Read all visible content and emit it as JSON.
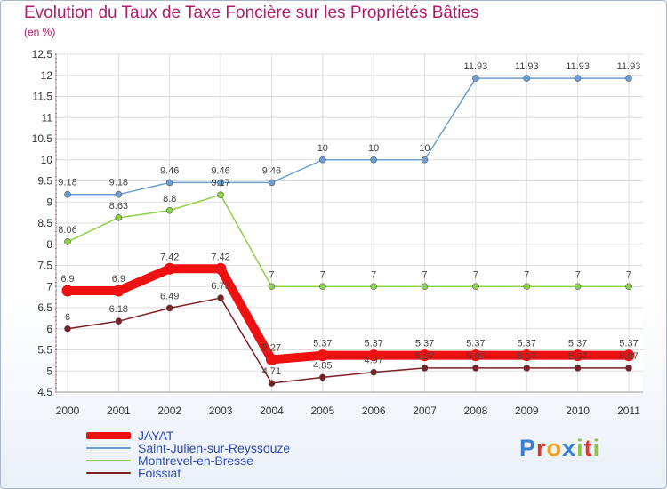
{
  "chart_data": {
    "type": "line",
    "title": "Evolution du Taux de Taxe Foncière sur les Propriétés Bâties",
    "ylabel": "(en %)",
    "xlabel": "",
    "ylim": [
      4.5,
      12.5
    ],
    "yticks": [
      "4.5",
      "5",
      "5.5",
      "6",
      "6.5",
      "7",
      "7.5",
      "8",
      "8.5",
      "9",
      "9.5",
      "10",
      "10.5",
      "11",
      "11.5",
      "12",
      "12.5"
    ],
    "categories": [
      "2000",
      "2001",
      "2002",
      "2003",
      "2004",
      "2005",
      "2006",
      "2007",
      "2008",
      "2009",
      "2010",
      "2011"
    ],
    "series": [
      {
        "name": "Saint-Julien-sur-Reyssouze",
        "color": "#6b9ed3",
        "values": [
          9.18,
          9.18,
          9.46,
          9.46,
          9.46,
          10,
          10,
          10,
          11.93,
          11.93,
          11.93,
          11.93
        ],
        "labels": [
          "9.18",
          "9.18",
          "9.46",
          "9.46",
          "9.46",
          "10",
          "10",
          "10",
          "11.93",
          "11.93",
          "11.93",
          "11.93"
        ]
      },
      {
        "name": "Montrevel-en-Bresse",
        "color": "#8ed146",
        "values": [
          8.06,
          8.63,
          8.8,
          9.17,
          7,
          7,
          7,
          7,
          7,
          7,
          7,
          7
        ],
        "labels": [
          "8.06",
          "8.63",
          "8.8",
          "9.17",
          "7",
          "7",
          "7",
          "7",
          "7",
          "7",
          "7",
          "7"
        ]
      },
      {
        "name": "Foissiat",
        "color": "#7a1f24",
        "values": [
          6,
          6.18,
          6.49,
          6.73,
          4.71,
          4.85,
          4.97,
          5.07,
          5.07,
          5.07,
          5.07,
          5.07
        ],
        "labels": [
          "6",
          "6.18",
          "6.49",
          "6.73",
          "4.71",
          "4.85",
          "4.97",
          "5.07",
          "5.07",
          "5.07",
          "5.07",
          "5.07"
        ]
      },
      {
        "name": "JAYAT",
        "color": "#ee1111",
        "values": [
          6.9,
          6.9,
          7.42,
          7.42,
          5.27,
          5.37,
          5.37,
          5.37,
          5.37,
          5.37,
          5.37,
          5.37
        ],
        "labels": [
          "6.9",
          "6.9",
          "7.42",
          "7.42",
          "5.27",
          "5.37",
          "5.37",
          "5.37",
          "5.37",
          "5.37",
          "5.37",
          "5.37"
        ]
      }
    ],
    "legend": [
      "JAYAT",
      "Saint-Julien-sur-Reyssouze",
      "Montrevel-en-Bresse",
      "Foissiat"
    ]
  },
  "logo": {
    "text": "Proxiti"
  }
}
